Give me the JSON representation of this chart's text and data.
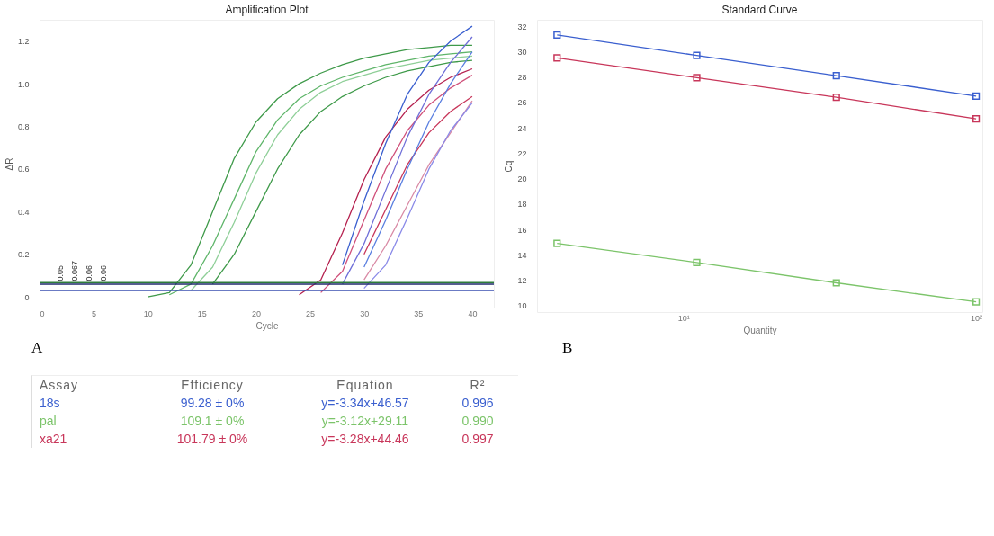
{
  "chart_data": [
    {
      "type": "line",
      "title": "Amplification Plot",
      "xlabel": "Cycle",
      "ylabel": "ΔR",
      "xlim": [
        0,
        42
      ],
      "ylim": [
        -0.05,
        1.3
      ],
      "xticks": [
        0,
        5,
        10,
        15,
        20,
        25,
        30,
        35,
        40
      ],
      "yticks": [
        0,
        0.2,
        0.4,
        0.6,
        0.8,
        {
          "value": 1,
          "label": "1.0"
        },
        1.2
      ],
      "marker": "none",
      "grid": false,
      "legend": false,
      "x": [
        10,
        12,
        14,
        16,
        18,
        20,
        22,
        24,
        26,
        28,
        30,
        32,
        34,
        36,
        38,
        40
      ],
      "series": [
        {
          "color": "#3f9a4a",
          "values": [
            0,
            0.02,
            0.15,
            0.4,
            0.65,
            0.82,
            0.93,
            1.0,
            1.05,
            1.09,
            1.12,
            1.14,
            1.16,
            1.17,
            1.18,
            1.18
          ]
        },
        {
          "color": "#5fb56a",
          "values": [
            null,
            0.01,
            0.06,
            0.24,
            0.46,
            0.68,
            0.83,
            0.93,
            0.99,
            1.03,
            1.06,
            1.09,
            1.11,
            1.13,
            1.14,
            1.15
          ]
        },
        {
          "color": "#8fcf98",
          "values": [
            null,
            null,
            0.03,
            0.14,
            0.35,
            0.58,
            0.76,
            0.88,
            0.96,
            1.01,
            1.04,
            1.07,
            1.09,
            1.11,
            1.12,
            1.13
          ]
        },
        {
          "color": "#3f9a4a",
          "values": [
            null,
            null,
            null,
            0.06,
            0.2,
            0.4,
            0.6,
            0.76,
            0.87,
            0.94,
            0.99,
            1.03,
            1.06,
            1.08,
            1.1,
            1.11
          ]
        },
        {
          "color": "#b5214f",
          "values": [
            null,
            null,
            null,
            null,
            null,
            null,
            null,
            0.01,
            0.08,
            0.3,
            0.55,
            0.75,
            0.88,
            0.97,
            1.03,
            1.07
          ]
        },
        {
          "color": "#d0507a",
          "values": [
            null,
            null,
            null,
            null,
            null,
            null,
            null,
            null,
            0.02,
            0.12,
            0.36,
            0.6,
            0.78,
            0.9,
            0.98,
            1.04
          ]
        },
        {
          "color": "#c8365a",
          "values": [
            null,
            null,
            null,
            null,
            null,
            null,
            null,
            null,
            null,
            null,
            0.2,
            0.41,
            0.62,
            0.77,
            0.87,
            0.94
          ]
        },
        {
          "color": "#d98aa5",
          "values": [
            null,
            null,
            null,
            null,
            null,
            null,
            null,
            null,
            null,
            null,
            0.08,
            0.24,
            0.43,
            0.62,
            0.77,
            0.92
          ]
        },
        {
          "color": "#3a5fcf",
          "values": [
            null,
            null,
            null,
            null,
            null,
            null,
            null,
            null,
            null,
            0.15,
            0.45,
            0.72,
            0.95,
            1.1,
            1.2,
            1.27
          ]
        },
        {
          "color": "#6f6fd8",
          "values": [
            null,
            null,
            null,
            null,
            null,
            null,
            null,
            null,
            null,
            0.06,
            0.25,
            0.5,
            0.75,
            0.95,
            1.1,
            1.22
          ]
        },
        {
          "color": "#5a7fe0",
          "values": [
            null,
            null,
            null,
            null,
            null,
            null,
            null,
            null,
            null,
            null,
            0.14,
            0.36,
            0.6,
            0.82,
            1.0,
            1.15
          ]
        },
        {
          "color": "#8a8ae8",
          "values": [
            null,
            null,
            null,
            null,
            null,
            null,
            null,
            null,
            null,
            null,
            0.04,
            0.15,
            0.37,
            0.6,
            0.78,
            0.91
          ]
        }
      ],
      "ref_lines": [
        {
          "axis": "y",
          "value": 0.067,
          "color": "#2e7d3a"
        },
        {
          "axis": "y",
          "value": 0.06,
          "color": "#1f2a6b"
        },
        {
          "axis": "y",
          "value": 0.03,
          "color": "#3a4fb0"
        }
      ],
      "annotations": [
        "A",
        "0.05",
        "0.067",
        "0.06",
        "0.06"
      ]
    },
    {
      "type": "line",
      "title": "Standard Curve",
      "xlabel": "Quantity",
      "ylabel": "Cq",
      "log": "x",
      "xlim": [
        3.16,
        105
      ],
      "ylim": [
        9.5,
        32.5
      ],
      "xticks": [
        {
          "value": 10,
          "label": "10¹"
        },
        {
          "value": 100,
          "label": "10²"
        }
      ],
      "yticks": [
        10,
        12,
        14,
        16,
        18,
        20,
        22,
        24,
        26,
        28,
        30,
        32
      ],
      "marker": "square",
      "grid": false,
      "legend": false,
      "x": [
        3.7,
        11.1,
        33.3,
        100
      ],
      "series": [
        {
          "color": "#3a5fcf",
          "values": [
            31.3,
            29.7,
            28.1,
            26.5
          ]
        },
        {
          "color": "#7cc46a",
          "values": [
            14.9,
            13.4,
            11.8,
            10.3
          ]
        },
        {
          "color": "#c8365a",
          "values": [
            29.5,
            27.95,
            26.4,
            24.7
          ]
        }
      ],
      "annotations": [
        "B"
      ]
    },
    {
      "type": "other",
      "annotations": [
        "Assay",
        "Efficiency",
        "Equation",
        "R²",
        "18s",
        "99.28 ± 0%",
        "y=-3.34x+46.57",
        "0.996",
        "pal",
        "109.1 ± 0%",
        "y=-3.12x+29.11",
        "0.990",
        "xa21",
        "101.79 ± 0%",
        "y=-3.28x+44.46",
        "0.997"
      ]
    }
  ]
}
